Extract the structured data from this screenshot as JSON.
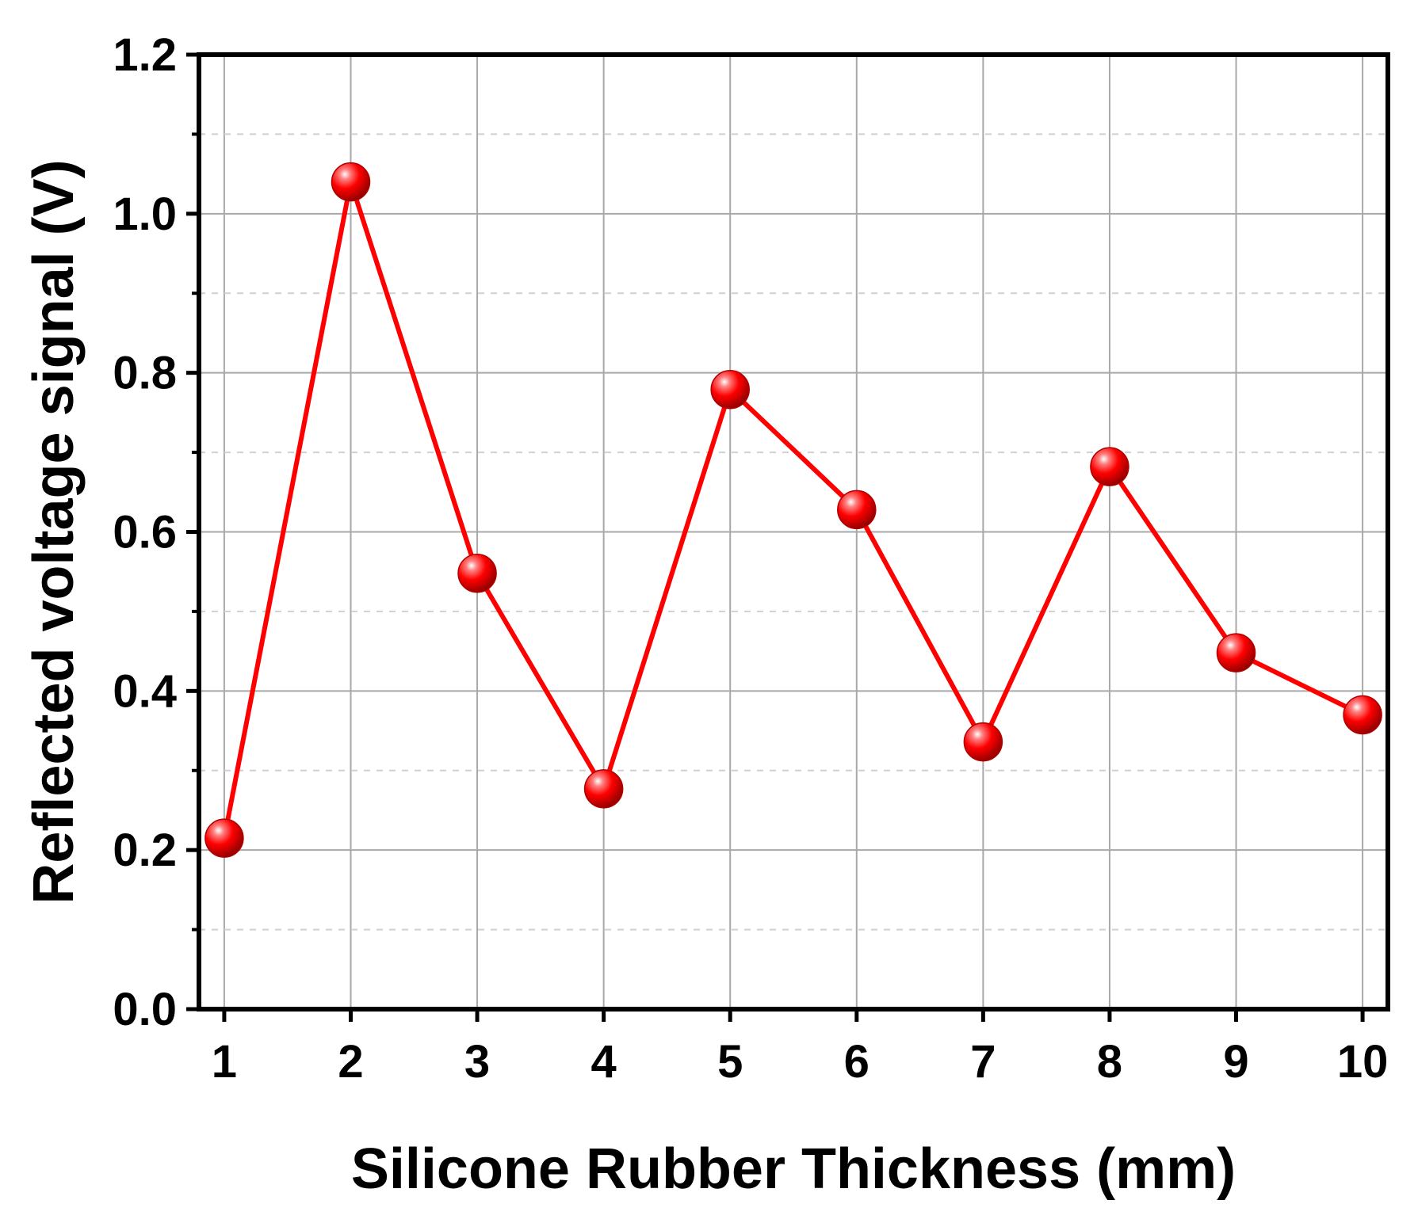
{
  "chart_data": {
    "type": "line",
    "title": "",
    "xlabel": "Silicone Rubber Thickness (mm)",
    "ylabel": "Reflected voltage signal (V)",
    "x": [
      1,
      2,
      3,
      4,
      5,
      6,
      7,
      8,
      9,
      10
    ],
    "xticks": [
      "1",
      "2",
      "3",
      "4",
      "5",
      "6",
      "7",
      "8",
      "9",
      "10"
    ],
    "yticks": [
      "0.0",
      "0.2",
      "0.4",
      "0.6",
      "0.8",
      "1.0",
      "1.2"
    ],
    "xlim": [
      0.8,
      10.2
    ],
    "ylim": [
      0,
      1.2
    ],
    "grid": true,
    "legend": "none",
    "series": [
      {
        "values": [
          0.215,
          1.04,
          0.548,
          0.277,
          0.779,
          0.628,
          0.336,
          0.682,
          0.448,
          0.37
        ],
        "color": "#ff0000",
        "marker": "sphere"
      }
    ]
  }
}
